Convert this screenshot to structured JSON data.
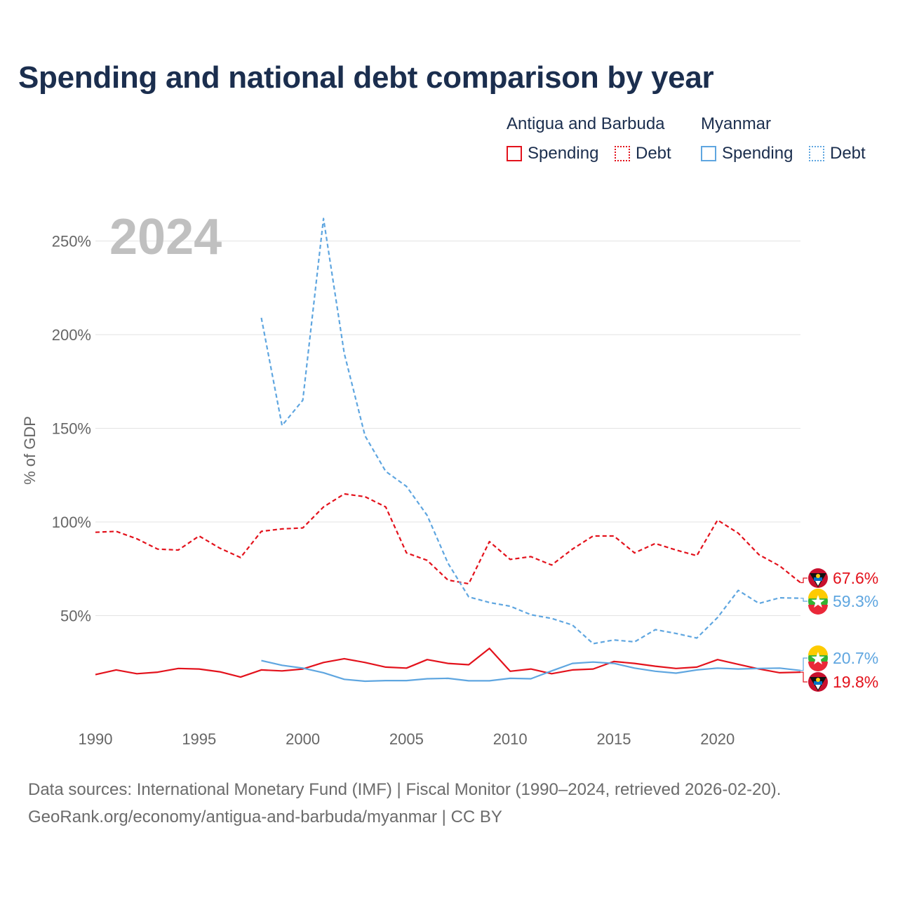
{
  "title": "Spending and national debt comparison by year",
  "legend": {
    "group1": "Antigua and Barbuda",
    "group2": "Myanmar",
    "spending": "Spending",
    "debt": "Debt"
  },
  "colors": {
    "antigua": "#e3121c",
    "myanmar": "#5fa6e0"
  },
  "source": {
    "line1": "Data sources: International Monetary Fund (IMF) | Fiscal Monitor (1990–2024, retrieved 2026-02-20).",
    "line2": "GeoRank.org/economy/antigua-and-barbuda/myanmar | CC BY"
  },
  "chart_data": {
    "type": "line",
    "year_watermark": "2024",
    "ylabel": "% of GDP",
    "xlim": [
      1990,
      2024
    ],
    "ylim": [
      0,
      260
    ],
    "xticks": [
      1990,
      1995,
      2000,
      2005,
      2010,
      2015,
      2020
    ],
    "yticks": [
      50,
      100,
      150,
      200,
      250
    ],
    "ytick_labels": [
      "50%",
      "100%",
      "150%",
      "200%",
      "250%"
    ],
    "series": [
      {
        "name": "Antigua and Barbuda Debt",
        "country": "antigua",
        "style": "dashed",
        "x": [
          1990,
          1991,
          1992,
          1993,
          1994,
          1995,
          1996,
          1997,
          1998,
          1999,
          2000,
          2001,
          2002,
          2003,
          2004,
          2005,
          2006,
          2007,
          2008,
          2009,
          2010,
          2011,
          2012,
          2013,
          2014,
          2015,
          2016,
          2017,
          2018,
          2019,
          2020,
          2021,
          2022,
          2023,
          2024
        ],
        "values": [
          94.5,
          95,
          91,
          85.5,
          85,
          92.5,
          86,
          81,
          95,
          96.3,
          96.8,
          108,
          115,
          113.5,
          108,
          83.5,
          79.5,
          69,
          67,
          89.5,
          80,
          81.5,
          77,
          85.5,
          92.5,
          92.5,
          83.5,
          88.5,
          85,
          82,
          101,
          94,
          82.5,
          76.5,
          67.6
        ],
        "end_label": "67.6%"
      },
      {
        "name": "Myanmar Debt",
        "country": "myanmar",
        "style": "dashed",
        "x": [
          1998,
          1999,
          2000,
          2001,
          2002,
          2003,
          2004,
          2005,
          2006,
          2007,
          2008,
          2009,
          2010,
          2011,
          2012,
          2013,
          2014,
          2015,
          2016,
          2017,
          2018,
          2019,
          2020,
          2021,
          2022,
          2023,
          2024
        ],
        "values": [
          209,
          151.5,
          165,
          262,
          190,
          146,
          127,
          119,
          103.5,
          78,
          60,
          57,
          55,
          50.5,
          48.5,
          45,
          35,
          37,
          36,
          42.5,
          40.5,
          38,
          49,
          63.5,
          56.5,
          59.5,
          59.3
        ],
        "end_label": "59.3%"
      },
      {
        "name": "Antigua and Barbuda Spending",
        "country": "antigua",
        "style": "solid",
        "x": [
          1990,
          1991,
          1992,
          1993,
          1994,
          1995,
          1996,
          1997,
          1998,
          1999,
          2000,
          2001,
          2002,
          2003,
          2004,
          2005,
          2006,
          2007,
          2008,
          2009,
          2010,
          2011,
          2012,
          2013,
          2014,
          2015,
          2016,
          2017,
          2018,
          2019,
          2020,
          2021,
          2022,
          2023,
          2024
        ],
        "values": [
          18.5,
          21,
          19,
          19.8,
          21.8,
          21.5,
          20,
          17.2,
          21,
          20.5,
          21.5,
          25,
          27,
          25,
          22.5,
          22,
          26.5,
          24.5,
          23.8,
          32.5,
          20.3,
          21.5,
          19,
          21,
          21.5,
          25.5,
          24.5,
          23,
          21.8,
          22.5,
          26.5,
          24,
          21.5,
          19.5,
          19.8
        ],
        "end_label": "19.8%"
      },
      {
        "name": "Myanmar Spending",
        "country": "myanmar",
        "style": "solid",
        "x": [
          1998,
          1999,
          2000,
          2001,
          2002,
          2003,
          2004,
          2005,
          2006,
          2007,
          2008,
          2009,
          2010,
          2011,
          2012,
          2013,
          2014,
          2015,
          2016,
          2017,
          2018,
          2019,
          2020,
          2021,
          2022,
          2023,
          2024
        ],
        "values": [
          26,
          23.5,
          22,
          19.5,
          16,
          15,
          15.3,
          15.3,
          16.3,
          16.5,
          15.2,
          15.2,
          16.5,
          16.3,
          20.5,
          24.5,
          25.2,
          24.5,
          22,
          20.3,
          19.3,
          21,
          22,
          21.5,
          21.8,
          22,
          20.7
        ],
        "end_label": "20.7%"
      }
    ]
  }
}
